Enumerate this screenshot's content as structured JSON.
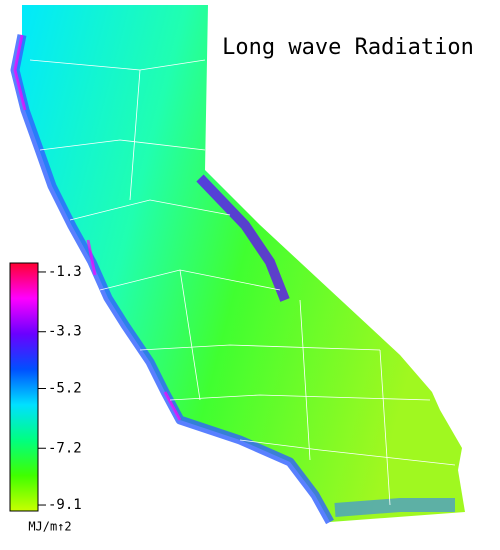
{
  "title": "Long wave Radiation",
  "colorbar": {
    "ticks": [
      -1.3,
      -3.3,
      -5.2,
      -7.2,
      -9.1
    ],
    "range": [
      -1,
      -9.3
    ],
    "unit": "MJ/m↑2",
    "colors": [
      "#ff0030",
      "#ff00ff",
      "#6a00ff",
      "#0050ff",
      "#00e0ff",
      "#00ff80",
      "#40ff00",
      "#c8ff00"
    ]
  }
}
